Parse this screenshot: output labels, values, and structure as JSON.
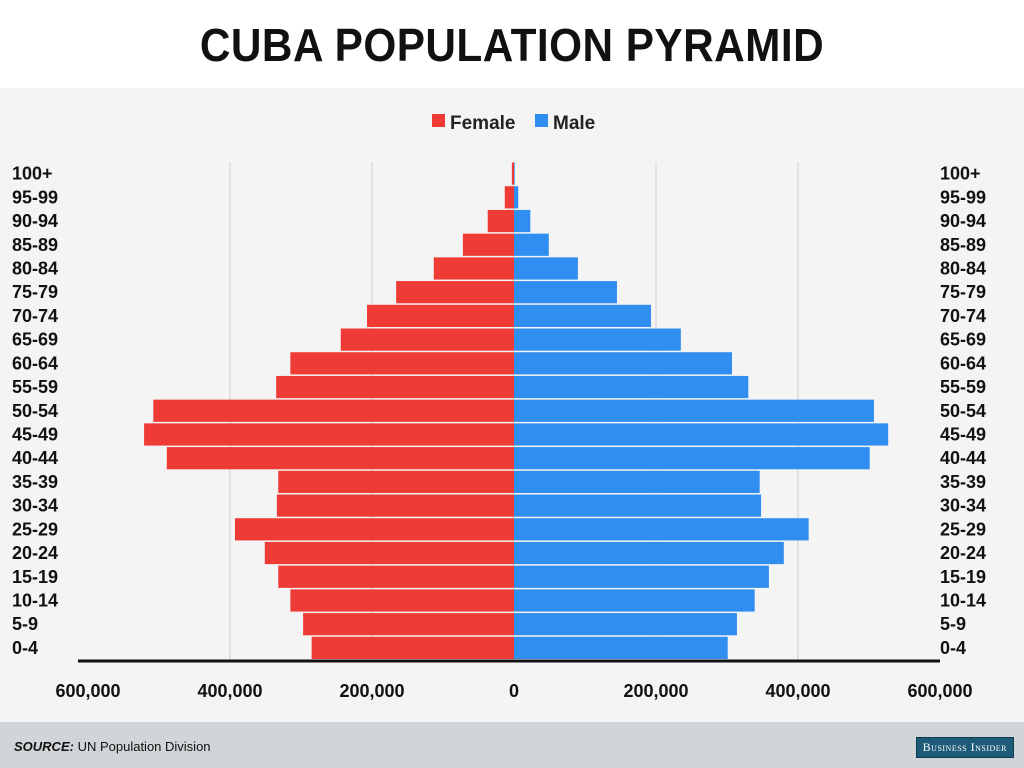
{
  "title": "CUBA POPULATION PYRAMID",
  "footer": {
    "source_label": "SOURCE:",
    "source_text": "UN Population Division",
    "brand": "Business Insider"
  },
  "chart_data": {
    "type": "bar",
    "orientation": "horizontal-pyramid",
    "title": "CUBA POPULATION PYRAMID",
    "categories": [
      "100+",
      "95-99",
      "90-94",
      "85-89",
      "80-84",
      "75-79",
      "70-74",
      "65-69",
      "60-64",
      "55-59",
      "50-54",
      "45-49",
      "40-44",
      "35-39",
      "30-34",
      "25-29",
      "20-24",
      "15-19",
      "10-14",
      "5-9",
      "0-4"
    ],
    "series": [
      {
        "name": "Female",
        "color": "#ef3b36",
        "side": "left",
        "values": [
          3000,
          13000,
          37000,
          72000,
          113000,
          166000,
          207000,
          244000,
          315000,
          335000,
          508000,
          521000,
          489000,
          332000,
          334000,
          393000,
          351000,
          332000,
          315000,
          297000,
          285000
        ]
      },
      {
        "name": "Male",
        "color": "#2f8ef0",
        "side": "right",
        "values": [
          1000,
          6000,
          23000,
          49000,
          90000,
          145000,
          193000,
          235000,
          307000,
          330000,
          507000,
          527000,
          501000,
          346000,
          348000,
          415000,
          380000,
          359000,
          339000,
          314000,
          301000
        ]
      }
    ],
    "xlim": [
      -600000,
      600000
    ],
    "x_ticks": [
      "600,000",
      "400,000",
      "200,000",
      "0",
      "200,000",
      "400,000",
      "600,000"
    ],
    "x_tick_values": [
      -600000,
      -400000,
      -200000,
      0,
      200000,
      400000,
      600000
    ],
    "grid": true,
    "legend": "top-center"
  }
}
